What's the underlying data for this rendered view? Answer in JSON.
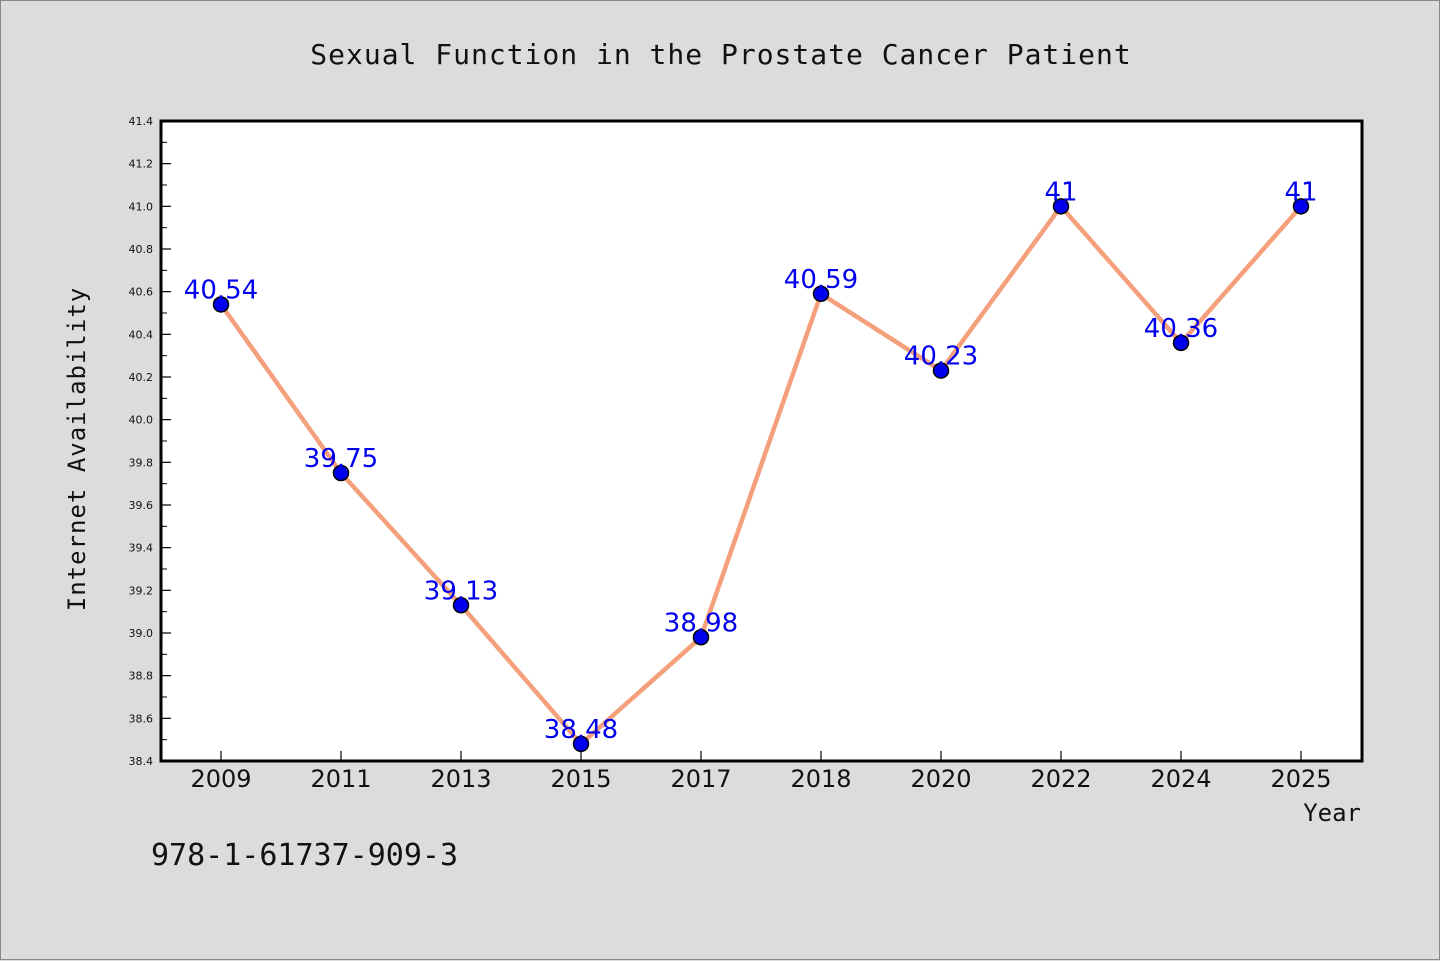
{
  "chart_data": {
    "type": "line",
    "title": "Sexual Function in the Prostate Cancer Patient",
    "xlabel": "Year",
    "ylabel": "Internet Availability",
    "categories": [
      "2009",
      "2011",
      "2013",
      "2015",
      "2017",
      "2018",
      "2020",
      "2022",
      "2024",
      "2025"
    ],
    "values": [
      40.54,
      39.75,
      39.13,
      38.48,
      38.98,
      40.59,
      40.23,
      41,
      40.36,
      41
    ],
    "data_labels": [
      "40.54",
      "39.75",
      "39.13",
      "38.48",
      "38.98",
      "40.59",
      "40.23",
      "41",
      "40.36",
      "41"
    ],
    "ylim": [
      38.4,
      41.4
    ],
    "yticks": [
      "38.4",
      "38.6",
      "38.8",
      "39.0",
      "39.2",
      "39.4",
      "39.6",
      "39.8",
      "40.0",
      "40.2",
      "40.4",
      "40.6",
      "40.8",
      "41.0",
      "41.2",
      "41.4"
    ],
    "grid": false,
    "line_color": "#f4a07c",
    "marker_color": "#0000ee",
    "label_color": "#0000ee"
  },
  "footer": {
    "isbn": "978-1-61737-909-3"
  }
}
